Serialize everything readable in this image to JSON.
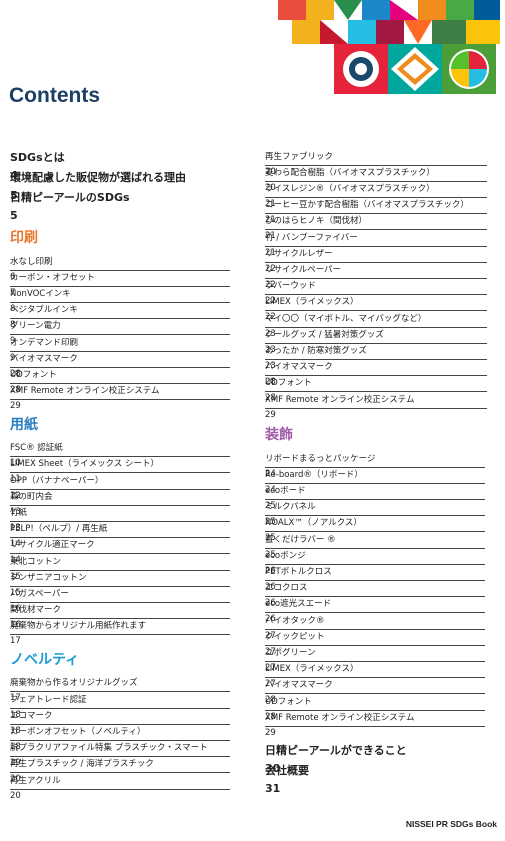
{
  "header": {
    "title": "Contents"
  },
  "left": {
    "main": [
      {
        "label": "SDGsとは",
        "page": 4
      },
      {
        "label": "環境配慮した販促物が選ばれる理由",
        "page": 5
      },
      {
        "label": "日精ピーアールのSDGs",
        "page": 5
      }
    ],
    "sections": [
      {
        "heading": "印刷",
        "items": [
          {
            "label": "水なし印刷",
            "page": 6
          },
          {
            "label": "カーボン・オフセット",
            "page": 7
          },
          {
            "label": "NonVOCインキ",
            "page": 8
          },
          {
            "label": "ベジタブルインキ",
            "page": 8
          },
          {
            "label": "グリーン電力",
            "page": 9
          },
          {
            "label": "オンデマンド印刷",
            "page": 9
          },
          {
            "label": "バイオマスマーク",
            "page": 28
          },
          {
            "label": "UDフォント",
            "page": 28
          },
          {
            "label": "XMF Remote オンライン校正システム",
            "page": 29
          }
        ]
      },
      {
        "heading": "用紙",
        "items": [
          {
            "label": "FSC® 認証紙",
            "page": 10
          },
          {
            "label": "LIMEX Sheet（ライメックス シート）",
            "page": 11
          },
          {
            "label": "OPP（バナナペーパー）",
            "page": 12
          },
          {
            "label": "森の町内会",
            "page": 13
          },
          {
            "label": "竹紙",
            "page": 13
          },
          {
            "label": "PELP!（ペルプ）/ 再生紙",
            "page": 14
          },
          {
            "label": "リサイクル適正マーク",
            "page": 14
          },
          {
            "label": "東北コットン",
            "page": 15
          },
          {
            "label": "タンザニアコットン",
            "page": 15
          },
          {
            "label": "バガスペーパー",
            "page": 16
          },
          {
            "label": "間伐材マーク",
            "page": 16
          },
          {
            "label": "廃棄物からオリジナル用紙作れます",
            "page": 17
          }
        ]
      },
      {
        "heading": "ノベルティ",
        "items": [
          {
            "label": "廃棄物から作るオリジナルグッズ",
            "page": 17
          },
          {
            "label": "フェアトレード認証",
            "page": 18
          },
          {
            "label": "エコマーク",
            "page": 18
          },
          {
            "label": "カーボンオフセット（ノベルティ）",
            "page": 18
          },
          {
            "label": "脱プラクリアファイル特集 プラスチック・スマート",
            "page": 19
          },
          {
            "label": "再生プラスチック / 海洋プラスチック",
            "page": 20
          },
          {
            "label": "再生アクリル",
            "page": 20
          }
        ]
      }
    ]
  },
  "right": {
    "items": [
      {
        "label": "再生ファブリック",
        "page": 20
      },
      {
        "label": "麦わら配合樹脂（バイオマスプラスチック）",
        "page": 20
      },
      {
        "label": "ライスレジン®（バイオマスプラスチック）",
        "page": 21
      },
      {
        "label": "コーヒー豆かす配合樹脂（バイオマスプラスチック）",
        "page": 21
      },
      {
        "label": "ひのはらヒノキ（間伐材）",
        "page": 21
      },
      {
        "label": "竹 / バンブーファイバー",
        "page": 21
      },
      {
        "label": "リサイクルレザー",
        "page": 22
      },
      {
        "label": "リサイクルペーパー",
        "page": 22
      },
      {
        "label": "ラバーウッド",
        "page": 22
      },
      {
        "label": "LIMEX（ライメックス）",
        "page": 22
      },
      {
        "label": "マイ〇〇（マイボトル、マイバッグなど）",
        "page": 23
      },
      {
        "label": "クールグッズ / 猛暑対策グッズ",
        "page": 23
      },
      {
        "label": "あったか / 防寒対策グッズ",
        "page": 23
      },
      {
        "label": "バイオマスマーク",
        "page": 28
      },
      {
        "label": "UDフォント",
        "page": 28
      },
      {
        "label": "XMF Remote オンライン校正システム",
        "page": 29
      }
    ],
    "sections": [
      {
        "heading": "装飾",
        "items": [
          {
            "label": "リボードまるっとパッケージ",
            "page": 24
          },
          {
            "label": "Re-board®（リボード）",
            "page": 24
          },
          {
            "label": "ecoボード",
            "page": 25
          },
          {
            "label": "ミルクパネル",
            "page": 25
          },
          {
            "label": "NOALX™（ノアルクス）",
            "page": 25
          },
          {
            "label": "置くだけラバー ®",
            "page": 25
          },
          {
            "label": "ecoボンジ",
            "page": 26
          },
          {
            "label": "PETボトルクロス",
            "page": 26
          },
          {
            "label": "エコクロス",
            "page": 26
          },
          {
            "label": "eco遮光スエード",
            "page": 26
          },
          {
            "label": "バイオタック®",
            "page": 27
          },
          {
            "label": "クイックピット",
            "page": 27
          },
          {
            "label": "ユポグリーン",
            "page": 27
          },
          {
            "label": "LIMEX（ライメックス）",
            "page": 27
          },
          {
            "label": "バイオマスマーク",
            "page": 28
          },
          {
            "label": "UDフォント",
            "page": 28
          },
          {
            "label": "XMF Remote オンライン校正システム",
            "page": 29
          }
        ]
      }
    ],
    "main": [
      {
        "label": "日精ピーアールができること",
        "page": 30
      },
      {
        "label": "会社概要",
        "page": 31
      }
    ]
  },
  "footer": "NISSEI PR SDGs Book"
}
